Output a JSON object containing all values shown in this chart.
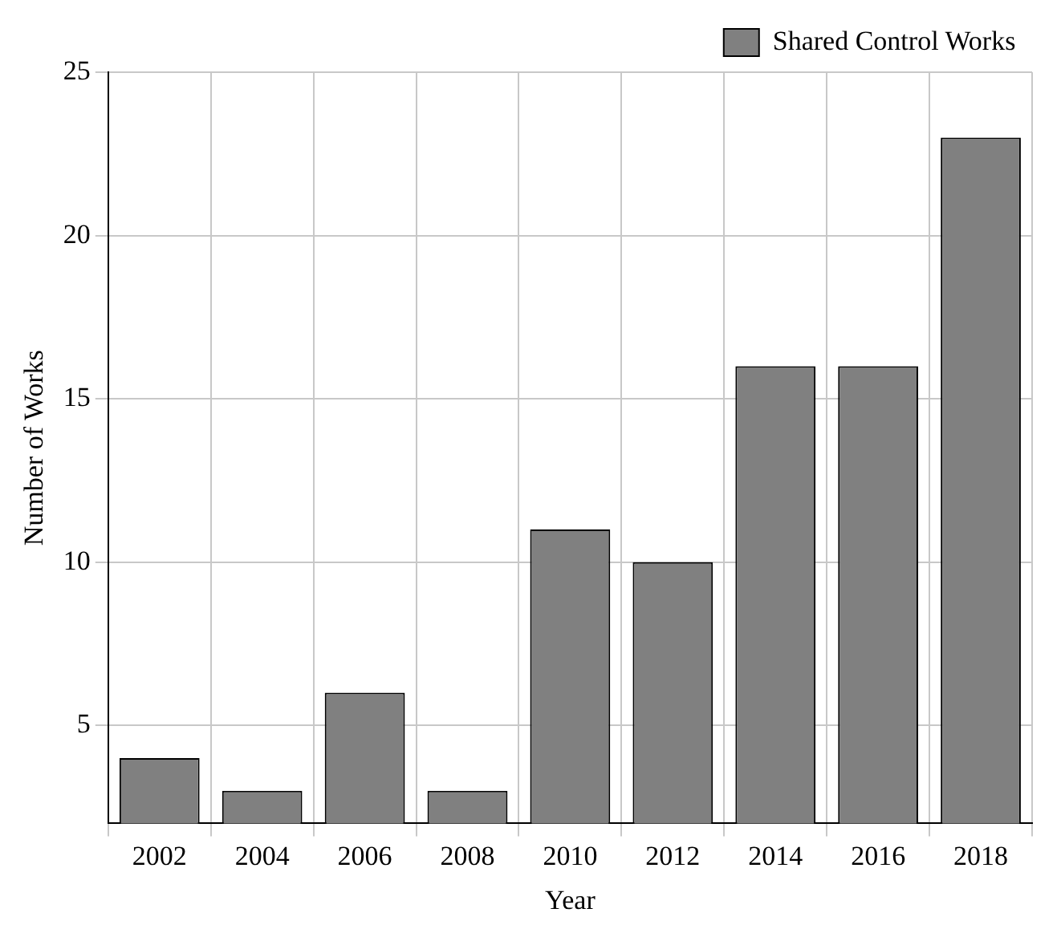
{
  "chart_data": {
    "type": "bar",
    "xlabel": "Year",
    "ylabel": "Number of Works",
    "categories": [
      "2002",
      "2004",
      "2006",
      "2008",
      "2010",
      "2012",
      "2014",
      "2016",
      "2018"
    ],
    "series": [
      {
        "name": "Shared Control Works",
        "color": "#808080",
        "values": [
          4,
          3,
          6,
          3,
          11,
          10,
          16,
          16,
          23
        ]
      }
    ],
    "ylim": [
      2,
      25
    ],
    "yticks": [
      5,
      10,
      15,
      20,
      25
    ],
    "grid": true,
    "legend": "top right"
  }
}
